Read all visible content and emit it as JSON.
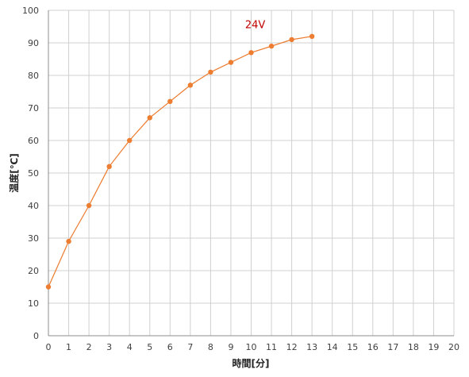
{
  "chart_data": {
    "type": "line",
    "xlabel": "時間[分]",
    "ylabel": "温度[℃]",
    "xlim": [
      0,
      20
    ],
    "ylim": [
      0,
      100
    ],
    "x_ticks": [
      0,
      1,
      2,
      3,
      4,
      5,
      6,
      7,
      8,
      9,
      10,
      11,
      12,
      13,
      14,
      15,
      16,
      17,
      18,
      19,
      20
    ],
    "y_ticks": [
      0,
      10,
      20,
      30,
      40,
      50,
      60,
      70,
      80,
      90,
      100
    ],
    "grid": true,
    "legend": "none",
    "series": [
      {
        "name": "24V",
        "color": "#ED7D31",
        "label_color": "#C00000",
        "x": [
          0,
          1,
          2,
          3,
          4,
          5,
          6,
          7,
          8,
          9,
          10,
          11,
          12,
          13
        ],
        "y": [
          15,
          29,
          40,
          52,
          60,
          67,
          72,
          77,
          81,
          84,
          87,
          89,
          91,
          92
        ]
      }
    ]
  }
}
